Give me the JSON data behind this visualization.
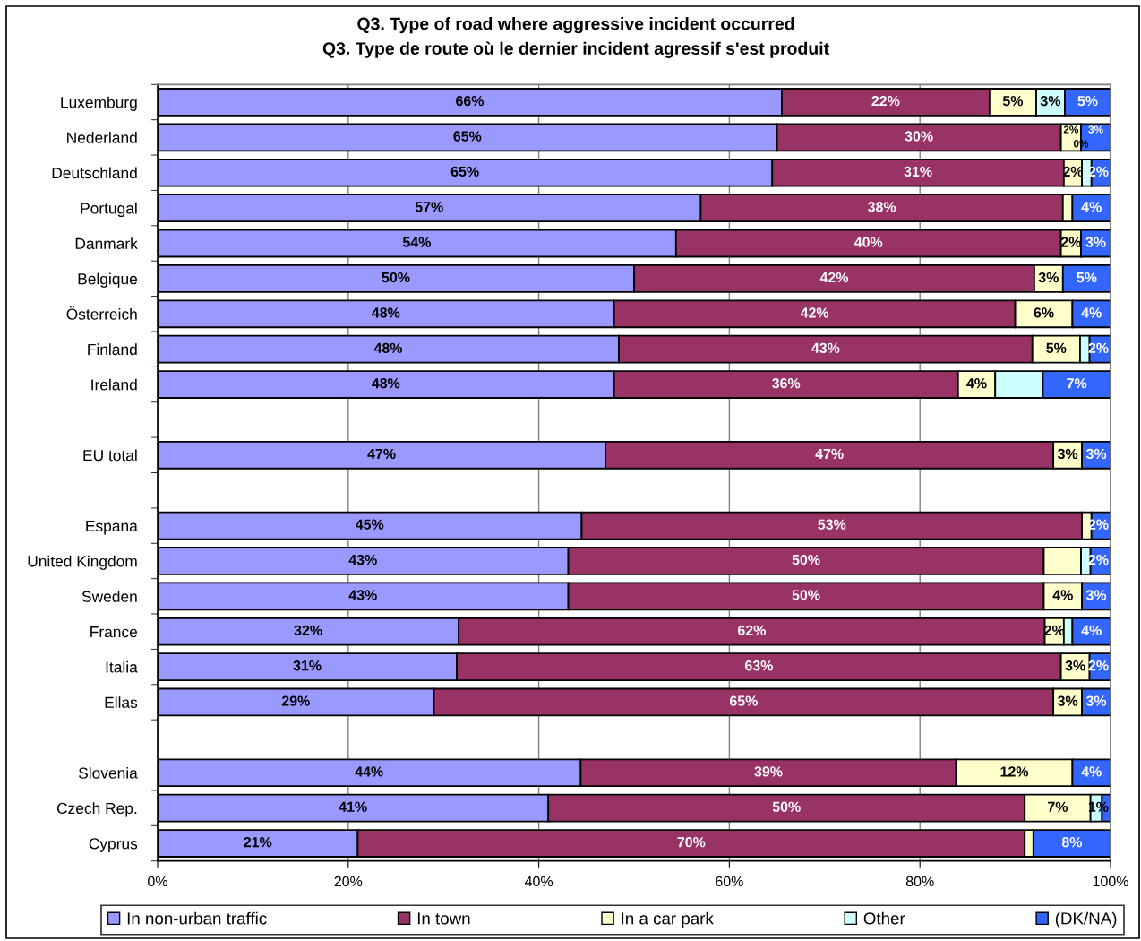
{
  "chart_data": {
    "type": "bar",
    "orientation": "horizontal",
    "stacked": true,
    "title": "Q3. Type of road where aggressive incident occurred\nQ3. Type de route où le dernier incident agressif s'est produit",
    "categories": [
      "Luxemburg",
      "Nederland",
      "Deutschland",
      "Portugal",
      "Danmark",
      "Belgique",
      "Österreich",
      "Finland",
      "Ireland",
      null,
      "EU total",
      null,
      "Espana",
      "United Kingdom",
      "Sweden",
      "France",
      "Italia",
      "Ellas",
      null,
      "Slovenia",
      "Czech Rep.",
      "Cyprus"
    ],
    "series": [
      {
        "name": "In non-urban traffic",
        "color": "#9999ff",
        "values": [
          65.5,
          65.0,
          64.5,
          57.0,
          54.4,
          50.0,
          47.9,
          48.4,
          47.9,
          null,
          47.0,
          null,
          44.5,
          43.1,
          43.1,
          31.6,
          31.4,
          29.0,
          null,
          44.4,
          41.0,
          21.0
        ],
        "value_labels": [
          "66%",
          "65%",
          "65%",
          "57%",
          "54%",
          "50%",
          "48%",
          "48%",
          "48%",
          null,
          "47%",
          null,
          "45%",
          "43%",
          "43%",
          "32%",
          "31%",
          "29%",
          null,
          "44%",
          "41%",
          "21%"
        ]
      },
      {
        "name": "In town",
        "color": "#993366",
        "values": [
          21.8,
          29.8,
          30.6,
          38.0,
          40.4,
          42.0,
          42.1,
          43.4,
          36.1,
          null,
          47.0,
          null,
          52.5,
          49.9,
          49.9,
          61.5,
          63.4,
          65.0,
          null,
          39.4,
          50.0,
          70.0
        ],
        "value_labels": [
          "22%",
          "30%",
          "31%",
          "38%",
          "40%",
          "42%",
          "42%",
          "43%",
          "36%",
          null,
          "47%",
          null,
          "53%",
          "50%",
          "50%",
          "62%",
          "63%",
          "65%",
          null,
          "39%",
          "50%",
          "70%"
        ]
      },
      {
        "name": "In a car park",
        "color": "#ffffcc",
        "values": [
          4.9,
          2.1,
          1.9,
          1.0,
          2.1,
          3.0,
          6.0,
          5.0,
          3.9,
          null,
          3.0,
          null,
          1.0,
          3.9,
          4.0,
          2.0,
          3.0,
          3.0,
          null,
          12.2,
          6.9,
          0.9
        ],
        "value_labels": [
          "5%",
          "2%",
          "2%",
          null,
          "2%",
          "3%",
          "6%",
          "5%",
          "4%",
          null,
          "3%",
          null,
          null,
          null,
          "4%",
          "2%",
          "3%",
          "3%",
          null,
          "12%",
          "7%",
          null
        ]
      },
      {
        "name": "Other",
        "color": "#ccffff",
        "values": [
          3.0,
          0,
          1.0,
          0,
          0,
          0,
          0,
          1.0,
          5.0,
          null,
          0,
          null,
          0,
          1.0,
          0,
          0.9,
          0,
          0,
          null,
          0,
          1.2,
          0
        ],
        "value_labels": [
          "3%",
          "0%",
          null,
          null,
          null,
          null,
          null,
          null,
          null,
          null,
          null,
          null,
          null,
          null,
          null,
          null,
          null,
          null,
          null,
          null,
          null,
          null
        ]
      },
      {
        "name": "(DK/NA)",
        "color": "#3366ff",
        "values": [
          4.8,
          3.1,
          2.0,
          4.0,
          3.1,
          5.0,
          4.0,
          2.2,
          7.1,
          null,
          3.0,
          null,
          2.0,
          2.1,
          3.0,
          4.0,
          2.2,
          3.0,
          null,
          4.0,
          0.9,
          8.1
        ],
        "value_labels": [
          "5%",
          "3%",
          "2%",
          "4%",
          "3%",
          "5%",
          "4%",
          "2%",
          "7%",
          null,
          "3%",
          null,
          "2%",
          "2%",
          "3%",
          "4%",
          "2%",
          "3%",
          null,
          "4%",
          "1%",
          "8%"
        ]
      }
    ],
    "xlim": [
      0,
      100
    ],
    "xticks": [
      {
        "value": 0,
        "label": "0%"
      },
      {
        "value": 20,
        "label": "20%"
      },
      {
        "value": 40,
        "label": "40%"
      },
      {
        "value": 60,
        "label": "60%"
      },
      {
        "value": 80,
        "label": "80%"
      },
      {
        "value": 100,
        "label": "100%"
      }
    ],
    "grid": "x",
    "legend": "bottom"
  }
}
